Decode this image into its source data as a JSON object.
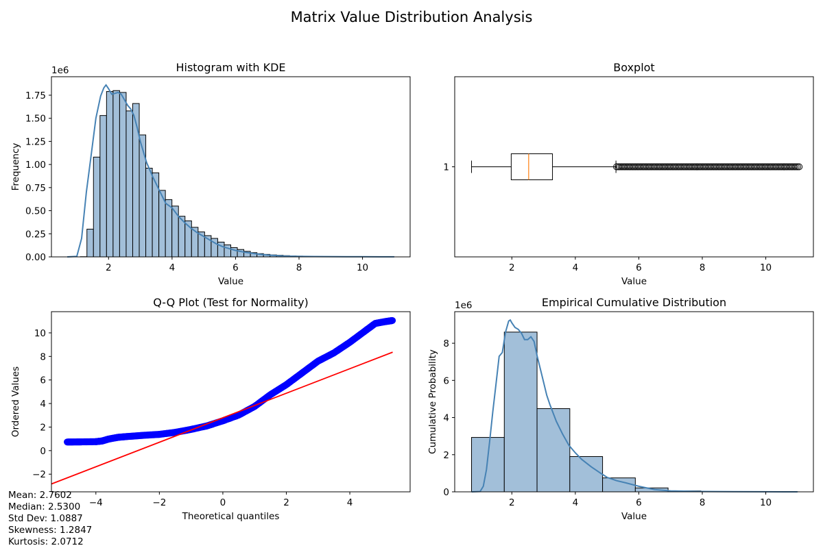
{
  "figure": {
    "title": "Matrix Value Distribution Analysis"
  },
  "stats": [
    "Mean: 2.7602",
    "Median: 2.5300",
    "Std Dev: 1.0887",
    "Skewness: 1.2847",
    "Kurtosis: 2.0712"
  ],
  "colors": {
    "bar_fill": "#a2bfd9",
    "kde_line": "#4682b4",
    "qq_points": "#0000ff",
    "qq_line": "#ff0000",
    "median_line": "#ff7f0e",
    "axes": "#000000"
  },
  "chart_data": [
    {
      "type": "bar",
      "title": "Histogram with KDE",
      "xlabel": "Value",
      "ylabel": "Frequency",
      "offset_label": "1e6",
      "xlim": [
        0.2,
        11.5
      ],
      "ylim": [
        0,
        1.95
      ],
      "xticks": [
        2,
        4,
        6,
        8,
        10
      ],
      "xtick_labels": [
        "2",
        "4",
        "6",
        "8",
        "10"
      ],
      "yticks": [
        0,
        0.25,
        0.5,
        0.75,
        1.0,
        1.25,
        1.5,
        1.75
      ],
      "ytick_labels": [
        "0.00",
        "0.25",
        "0.50",
        "0.75",
        "1.00",
        "1.25",
        "1.50",
        "1.75"
      ],
      "bin_start": 0.7,
      "bin_width": 0.206,
      "values": [
        0,
        0,
        0.002,
        0.3,
        1.08,
        1.53,
        1.79,
        1.8,
        1.78,
        1.58,
        1.66,
        1.32,
        0.96,
        0.91,
        0.72,
        0.62,
        0.55,
        0.44,
        0.39,
        0.32,
        0.27,
        0.23,
        0.2,
        0.16,
        0.13,
        0.1,
        0.08,
        0.06,
        0.046,
        0.035,
        0.027,
        0.021,
        0.017,
        0.013,
        0.01,
        0.008,
        0.006,
        0.005,
        0.004,
        0.003,
        0.0025,
        0.002,
        0.0015,
        0.0012,
        0.001,
        0.0008,
        0.0006,
        0.0005,
        0.0003,
        0.0002
      ],
      "kde": {
        "x": [
          0.7,
          1.0,
          1.15,
          1.3,
          1.45,
          1.6,
          1.75,
          1.85,
          1.92,
          2.0,
          2.1,
          2.2,
          2.3,
          2.4,
          2.5,
          2.6,
          2.7,
          2.8,
          2.9,
          3.0,
          3.2,
          3.4,
          3.6,
          3.8,
          4.0,
          4.2,
          4.4,
          4.6,
          4.8,
          5.0,
          5.2,
          5.4,
          5.6,
          5.8,
          6.0,
          6.3,
          6.6,
          7.0,
          7.5,
          8.0,
          8.5,
          9.0,
          9.5,
          10.0,
          10.5,
          11.0
        ],
        "y": [
          0,
          0.005,
          0.2,
          0.7,
          1.1,
          1.5,
          1.74,
          1.83,
          1.86,
          1.82,
          1.76,
          1.77,
          1.78,
          1.76,
          1.7,
          1.64,
          1.6,
          1.53,
          1.4,
          1.25,
          1.02,
          0.86,
          0.72,
          0.58,
          0.53,
          0.44,
          0.37,
          0.31,
          0.26,
          0.22,
          0.18,
          0.14,
          0.11,
          0.09,
          0.07,
          0.05,
          0.035,
          0.02,
          0.01,
          0.006,
          0.004,
          0.003,
          0.002,
          0.0015,
          0.001,
          0.0005
        ]
      }
    },
    {
      "type": "boxplot",
      "title": "Boxplot",
      "xlabel": "Value",
      "xlim": [
        0.2,
        11.5
      ],
      "ylim": [
        0.5,
        1.5
      ],
      "xticks": [
        2,
        4,
        6,
        8,
        10
      ],
      "xtick_labels": [
        "2",
        "4",
        "6",
        "8",
        "10"
      ],
      "yticks": [
        1
      ],
      "ytick_labels": [
        "1"
      ],
      "whisker_low": 0.73,
      "q1": 1.98,
      "median": 2.53,
      "q3": 3.28,
      "whisker_high": 5.28,
      "outlier_range": [
        5.3,
        11.05
      ]
    },
    {
      "type": "scatter",
      "title": "Q-Q Plot (Test for Normality)",
      "xlabel": "Theoretical quantiles",
      "ylabel": "Ordered Values",
      "xlim": [
        -5.4,
        5.9
      ],
      "ylim": [
        -3.5,
        11.8
      ],
      "xticks": [
        -4,
        -2,
        0,
        2,
        4
      ],
      "xtick_labels": [
        "−4",
        "−2",
        "0",
        "2",
        "4"
      ],
      "yticks": [
        -2,
        0,
        2,
        4,
        6,
        8,
        10
      ],
      "ytick_labels": [
        "−2",
        "0",
        "2",
        "4",
        "6",
        "8",
        "10"
      ],
      "points": {
        "x": [
          -4.9,
          -4.5,
          -4.0,
          -3.8,
          -3.6,
          -3.3,
          -3.0,
          -2.5,
          -2.0,
          -1.5,
          -1.0,
          -0.5,
          0.0,
          0.5,
          1.0,
          1.5,
          2.0,
          2.5,
          3.0,
          3.5,
          4.0,
          4.5,
          4.8,
          5.1,
          5.35
        ],
        "y": [
          0.73,
          0.74,
          0.76,
          0.82,
          0.98,
          1.13,
          1.2,
          1.3,
          1.38,
          1.55,
          1.8,
          2.1,
          2.53,
          3.02,
          3.75,
          4.75,
          5.6,
          6.6,
          7.6,
          8.3,
          9.2,
          10.2,
          10.8,
          10.95,
          11.05
        ]
      },
      "fit_line": {
        "x": [
          -5.4,
          5.35
        ],
        "y": [
          -2.83,
          8.36
        ]
      }
    },
    {
      "type": "bar",
      "title": "Empirical Cumulative Distribution",
      "xlabel": "Value",
      "ylabel": "Cumulative Probability",
      "offset_label": "1e6",
      "xlim": [
        0.2,
        11.5
      ],
      "ylim": [
        0,
        9.7
      ],
      "xticks": [
        2,
        4,
        6,
        8,
        10
      ],
      "xtick_labels": [
        "2",
        "4",
        "6",
        "8",
        "10"
      ],
      "yticks": [
        0,
        2,
        4,
        6,
        8
      ],
      "ytick_labels": [
        "0",
        "2",
        "4",
        "6",
        "8"
      ],
      "bin_start": 0.73,
      "bin_width": 1.032,
      "values": [
        2.93,
        8.6,
        4.48,
        1.9,
        0.75,
        0.21,
        0.05,
        0.015,
        0.005,
        0.002
      ],
      "kde": {
        "x": [
          0.73,
          1.0,
          1.1,
          1.2,
          1.3,
          1.4,
          1.5,
          1.6,
          1.7,
          1.8,
          1.9,
          1.95,
          2.0,
          2.1,
          2.2,
          2.3,
          2.4,
          2.5,
          2.6,
          2.7,
          2.8,
          2.9,
          3.0,
          3.1,
          3.2,
          3.4,
          3.6,
          3.8,
          4.0,
          4.2,
          4.5,
          4.8,
          5.0,
          5.3,
          5.6,
          6.0,
          6.5,
          7.0,
          8.0,
          9.0,
          10.0,
          11.0
        ],
        "y": [
          0,
          0.02,
          0.3,
          1.2,
          2.7,
          4.3,
          5.8,
          7.3,
          7.5,
          8.6,
          9.2,
          9.25,
          9.1,
          8.85,
          8.75,
          8.55,
          8.2,
          8.2,
          8.35,
          8.1,
          7.3,
          6.6,
          5.9,
          5.2,
          4.7,
          3.8,
          3.1,
          2.5,
          2.1,
          1.75,
          1.35,
          1.0,
          0.78,
          0.6,
          0.48,
          0.3,
          0.12,
          0.05,
          0.02,
          0.008,
          0.004,
          0.001
        ]
      }
    }
  ]
}
